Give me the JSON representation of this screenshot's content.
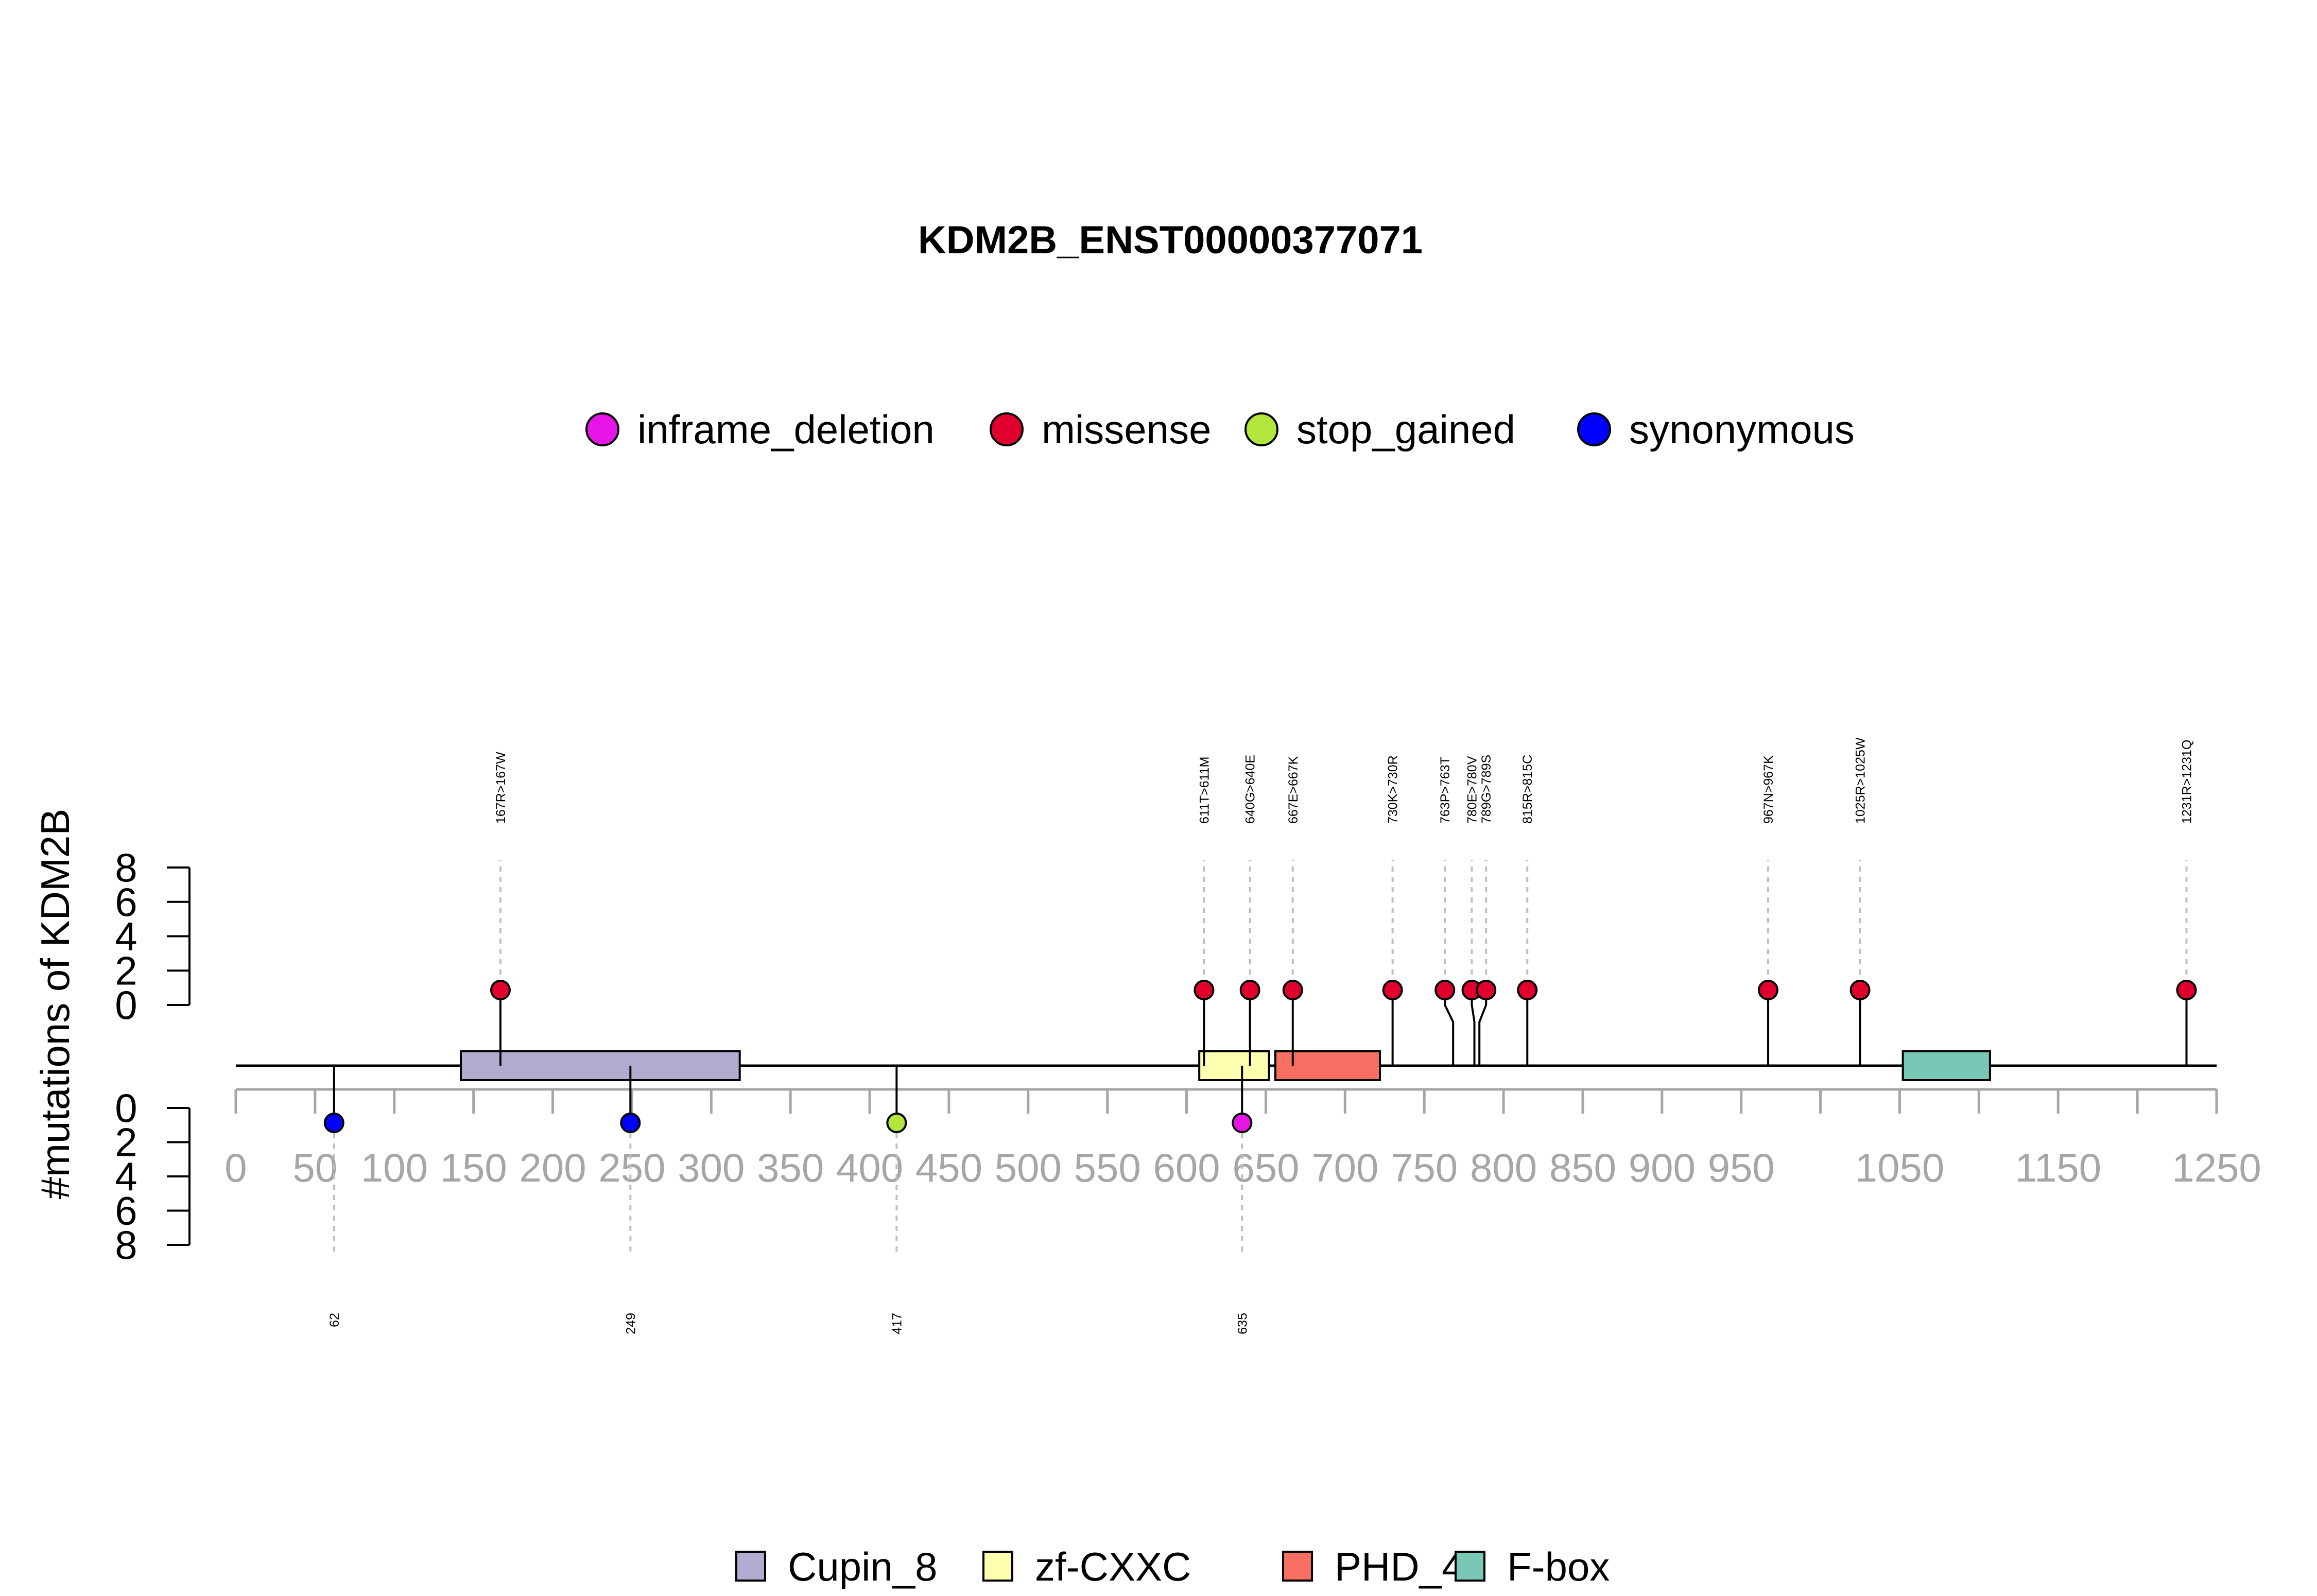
{
  "chart_data": {
    "type": "lollipop",
    "title": "KDM2B_ENST00000377071",
    "ylabel": "#mutations of KDM2B",
    "xlim": [
      0,
      1250
    ],
    "ylim_top": [
      0,
      8
    ],
    "ylim_bottom": [
      0,
      8
    ],
    "x_ticks": [
      "0",
      "50",
      "100",
      "150",
      "200",
      "250",
      "300",
      "350",
      "400",
      "450",
      "500",
      "550",
      "600",
      "650",
      "700",
      "750",
      "800",
      "850",
      "900",
      "950",
      "1050",
      "1150",
      "1250"
    ],
    "y_ticks": [
      "0",
      "2",
      "4",
      "6",
      "8"
    ],
    "mutation_types": [
      {
        "name": "inframe_deletion",
        "color": "#e614e6"
      },
      {
        "name": "missense",
        "color": "#e0002e"
      },
      {
        "name": "stop_gained",
        "color": "#b3e63c"
      },
      {
        "name": "synonymous",
        "color": "#0000ff"
      }
    ],
    "domains": [
      {
        "name": "Cupin_8",
        "start": 142,
        "end": 318,
        "color": "#b3acd1"
      },
      {
        "name": "zf-CXXC",
        "start": 608,
        "end": 652,
        "color": "#ffffb0"
      },
      {
        "name": "PHD_4",
        "start": 656,
        "end": 722,
        "color": "#f66f62"
      },
      {
        "name": "F-box",
        "start": 1052,
        "end": 1107,
        "color": "#78c8b5"
      }
    ],
    "top_mutations": [
      {
        "label": "167R>167W",
        "pos": 167,
        "count": 1,
        "type": "missense"
      },
      {
        "label": "611T>611M",
        "pos": 611,
        "count": 1,
        "type": "missense"
      },
      {
        "label": "640G>640E",
        "pos": 640,
        "count": 1,
        "type": "missense"
      },
      {
        "label": "667E>667K",
        "pos": 667,
        "count": 1,
        "type": "missense"
      },
      {
        "label": "730K>730R",
        "pos": 730,
        "count": 1,
        "type": "missense"
      },
      {
        "label": "763P>763T",
        "pos": 763,
        "count": 1,
        "type": "missense"
      },
      {
        "label": "780E>780V",
        "pos": 780,
        "count": 1,
        "type": "missense"
      },
      {
        "label": "789G>789S",
        "pos": 789,
        "count": 1,
        "type": "missense"
      },
      {
        "label": "815R>815C",
        "pos": 815,
        "count": 1,
        "type": "missense"
      },
      {
        "label": "967N>967K",
        "pos": 967,
        "count": 1,
        "type": "missense"
      },
      {
        "label": "1025R>1025W",
        "pos": 1025,
        "count": 1,
        "type": "missense"
      },
      {
        "label": "1231R>1231Q",
        "pos": 1231,
        "count": 1,
        "type": "missense"
      }
    ],
    "bottom_mutations": [
      {
        "label": "62",
        "pos": 62,
        "count": 1,
        "type": "synonymous"
      },
      {
        "label": "249",
        "pos": 249,
        "count": 1,
        "type": "synonymous"
      },
      {
        "label": "417",
        "pos": 417,
        "count": 1,
        "type": "stop_gained"
      },
      {
        "label": "635",
        "pos": 635,
        "count": 1,
        "type": "inframe_deletion"
      }
    ]
  }
}
